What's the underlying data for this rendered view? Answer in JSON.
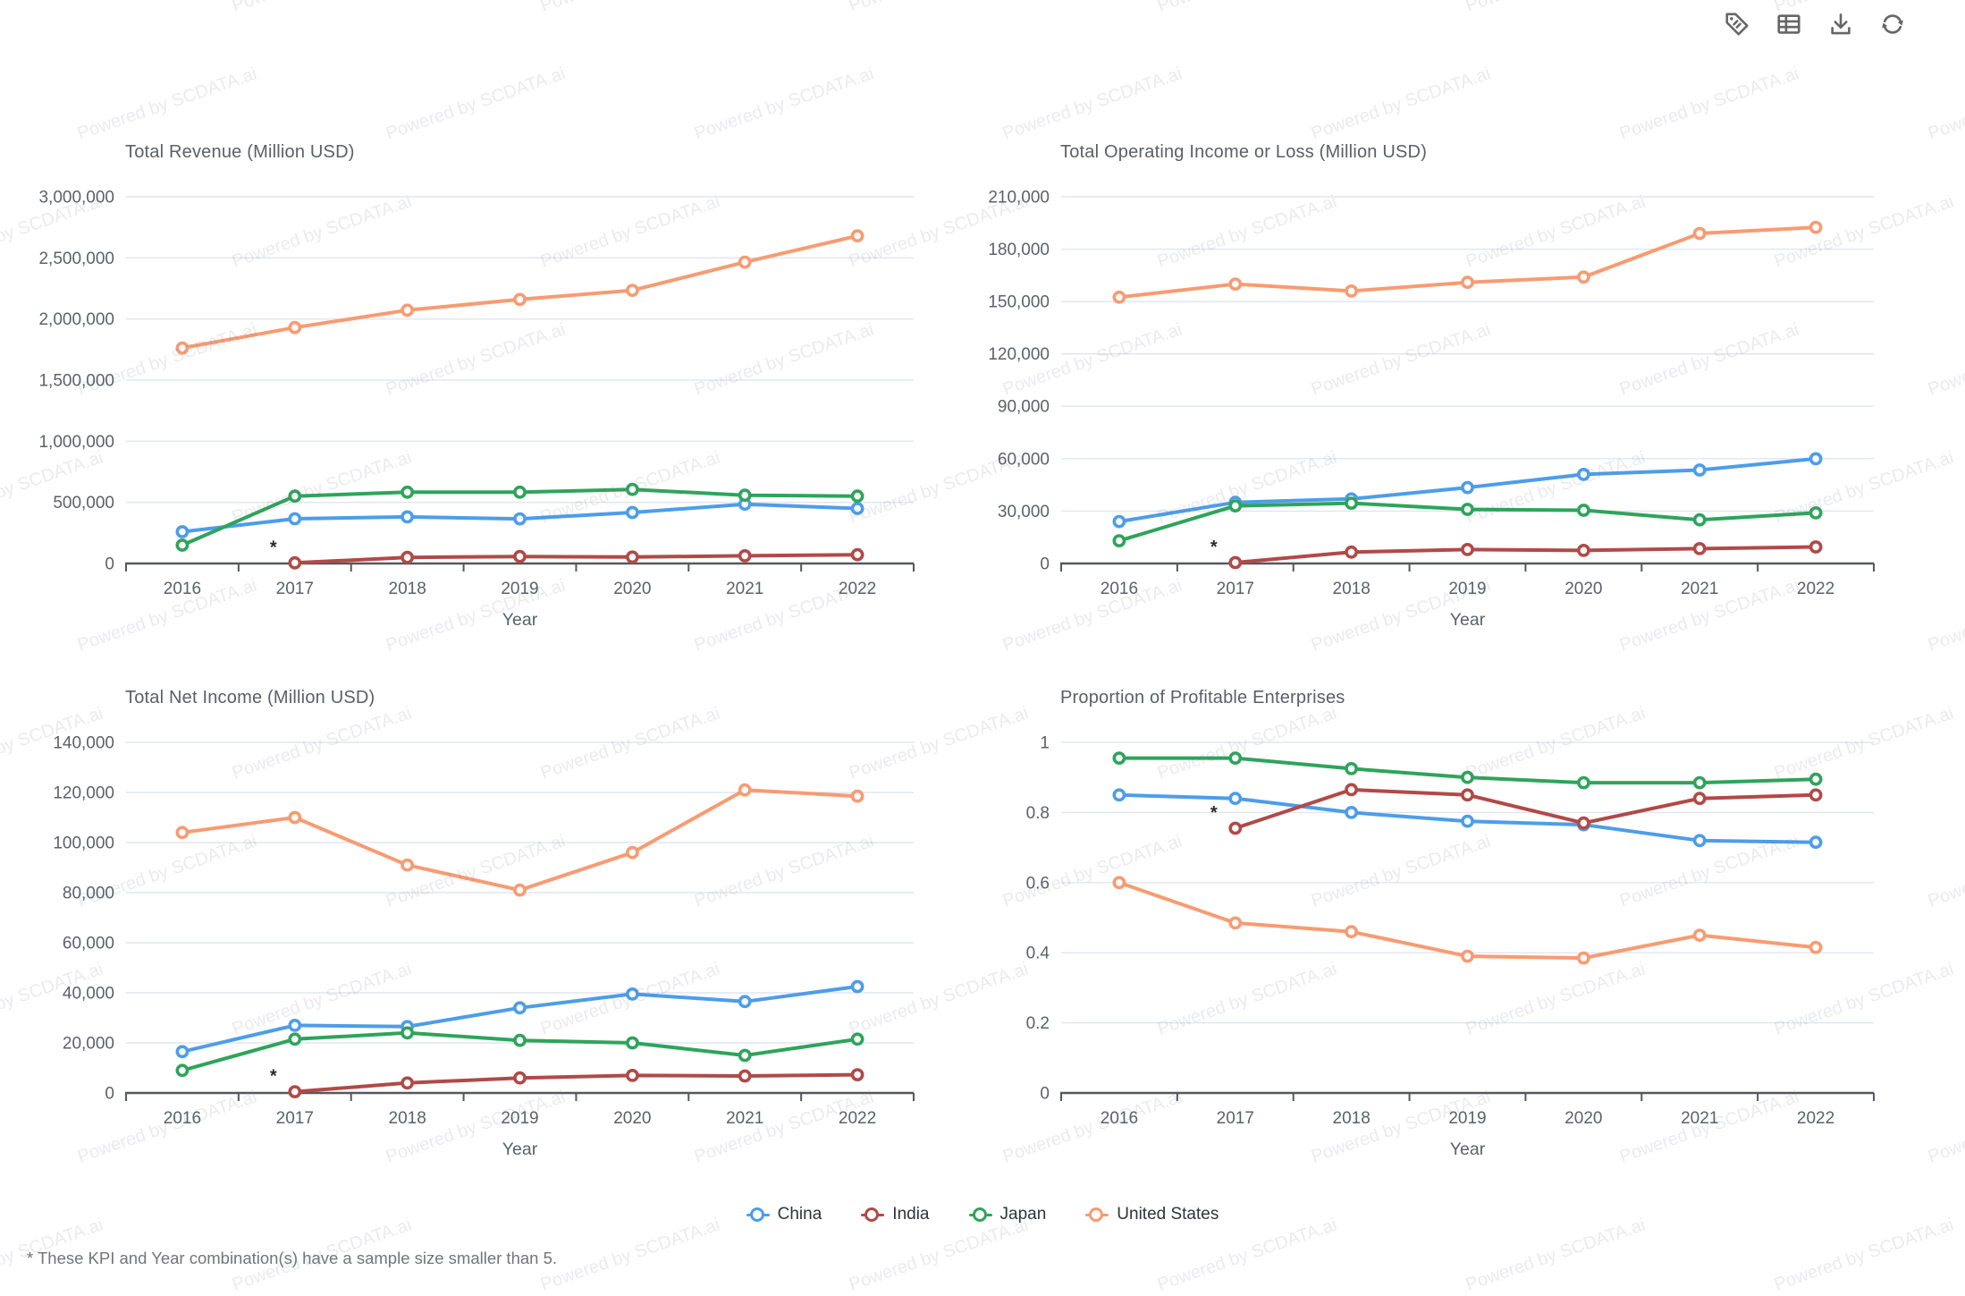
{
  "watermark": {
    "text": "Powered by SCDATA.ai"
  },
  "toolbar": {
    "icons": [
      {
        "name": "tag-icon"
      },
      {
        "name": "table-icon"
      },
      {
        "name": "download-icon"
      },
      {
        "name": "refresh-icon"
      }
    ]
  },
  "colors": {
    "China": "#4D9DE9",
    "India": "#B04A47",
    "Japan": "#2EA45B",
    "United States": "#F89B72",
    "grid": "#E1E5F0",
    "axis": "#54585E",
    "tick_text": "#5C6167",
    "title_text": "#5B6066"
  },
  "legend": {
    "items": [
      {
        "label": "China",
        "color": "#4D9DE9"
      },
      {
        "label": "India",
        "color": "#B04A47"
      },
      {
        "label": "Japan",
        "color": "#2EA45B"
      },
      {
        "label": "United States",
        "color": "#F89B72"
      }
    ]
  },
  "footnote": "* These KPI and Year combination(s) have a sample size smaller than 5.",
  "chart_data": [
    {
      "type": "line",
      "title": "Total Revenue (Million USD)",
      "xlabel": "Year",
      "categories": [
        "2016",
        "2017",
        "2018",
        "2019",
        "2020",
        "2021",
        "2022"
      ],
      "ylim": [
        0,
        3000000
      ],
      "ytick_step": 500000,
      "grid": true,
      "legend_position": "bottom",
      "series": [
        {
          "name": "China",
          "values": [
            260000,
            366000,
            381000,
            365000,
            417000,
            485000,
            450000
          ]
        },
        {
          "name": "India",
          "values": [
            null,
            5000,
            50000,
            57000,
            53000,
            63000,
            72000
          ]
        },
        {
          "name": "Japan",
          "values": [
            150000,
            551000,
            583000,
            583000,
            606000,
            558000,
            551000
          ]
        },
        {
          "name": "United States",
          "values": [
            1763000,
            1930000,
            2072000,
            2160000,
            2235000,
            2465000,
            2680000
          ]
        }
      ],
      "annotation": {
        "text": "*",
        "series": "India",
        "year": "2017"
      }
    },
    {
      "type": "line",
      "title": "Total Operating Income or Loss (Million USD)",
      "xlabel": "Year",
      "categories": [
        "2016",
        "2017",
        "2018",
        "2019",
        "2020",
        "2021",
        "2022"
      ],
      "ylim": [
        0,
        210000
      ],
      "ytick_step": 30000,
      "grid": true,
      "legend_position": "bottom",
      "series": [
        {
          "name": "China",
          "values": [
            24000,
            35000,
            37000,
            43500,
            51000,
            53500,
            60000
          ]
        },
        {
          "name": "India",
          "values": [
            null,
            500,
            6500,
            8000,
            7500,
            8500,
            9500
          ]
        },
        {
          "name": "Japan",
          "values": [
            13000,
            33000,
            34500,
            31000,
            30500,
            25000,
            29000
          ]
        },
        {
          "name": "United States",
          "values": [
            152500,
            160000,
            156000,
            161000,
            164000,
            189000,
            192500
          ]
        }
      ],
      "annotation": {
        "text": "*",
        "series": "India",
        "year": "2017"
      }
    },
    {
      "type": "line",
      "title": "Total Net Income (Million USD)",
      "xlabel": "Year",
      "categories": [
        "2016",
        "2017",
        "2018",
        "2019",
        "2020",
        "2021",
        "2022"
      ],
      "ylim": [
        0,
        140000
      ],
      "ytick_step": 20000,
      "grid": true,
      "legend_position": "bottom",
      "series": [
        {
          "name": "China",
          "values": [
            16500,
            27000,
            26500,
            34000,
            39500,
            36500,
            42500
          ]
        },
        {
          "name": "India",
          "values": [
            null,
            500,
            4000,
            6000,
            7000,
            6800,
            7300
          ]
        },
        {
          "name": "Japan",
          "values": [
            9000,
            21500,
            24000,
            21000,
            20000,
            15000,
            21500
          ]
        },
        {
          "name": "United States",
          "values": [
            104000,
            110000,
            91000,
            81000,
            96000,
            121000,
            118500
          ]
        }
      ],
      "annotation": {
        "text": "*",
        "series": "India",
        "year": "2017"
      }
    },
    {
      "type": "line",
      "title": "Proportion of Profitable Enterprises",
      "xlabel": "Year",
      "categories": [
        "2016",
        "2017",
        "2018",
        "2019",
        "2020",
        "2021",
        "2022"
      ],
      "ylim": [
        0,
        1
      ],
      "ytick_step": 0.2,
      "grid": true,
      "legend_position": "bottom",
      "series": [
        {
          "name": "China",
          "values": [
            0.85,
            0.84,
            0.8,
            0.775,
            0.765,
            0.72,
            0.715
          ]
        },
        {
          "name": "India",
          "values": [
            null,
            0.755,
            0.865,
            0.85,
            0.77,
            0.84,
            0.85
          ]
        },
        {
          "name": "Japan",
          "values": [
            0.955,
            0.955,
            0.925,
            0.9,
            0.885,
            0.885,
            0.895
          ]
        },
        {
          "name": "United States",
          "values": [
            0.6,
            0.485,
            0.46,
            0.39,
            0.385,
            0.45,
            0.415
          ]
        }
      ],
      "annotation": {
        "text": "*",
        "series": "India",
        "year": "2017"
      }
    }
  ]
}
